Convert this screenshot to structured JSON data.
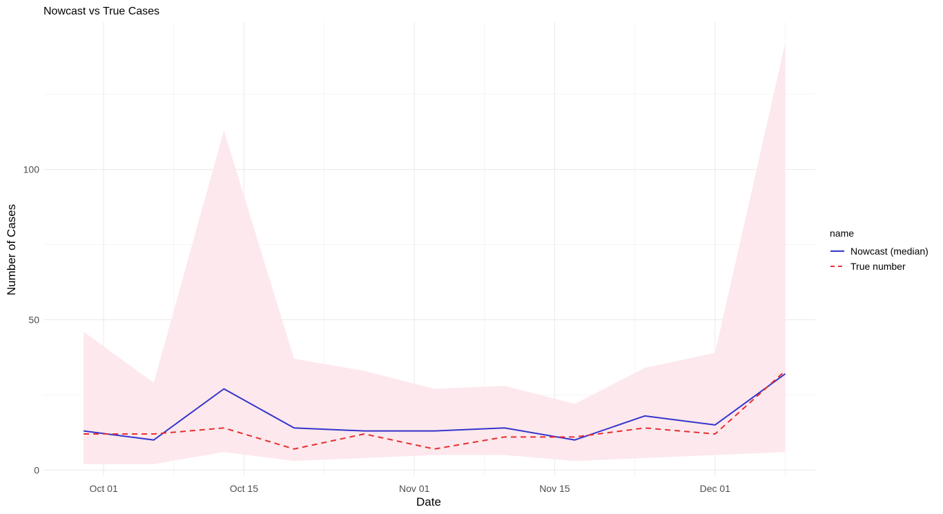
{
  "chart_data": {
    "type": "line",
    "title": "Nowcast vs True Cases",
    "xlabel": "Date",
    "ylabel": "Number of Cases",
    "x": [
      "2023-09-29",
      "2023-10-06",
      "2023-10-13",
      "2023-10-20",
      "2023-10-27",
      "2023-11-03",
      "2023-11-10",
      "2023-11-17",
      "2023-11-24",
      "2023-12-01",
      "2023-12-08"
    ],
    "x_range": [
      "2023-09-25",
      "2023-12-11"
    ],
    "ylim": [
      -2,
      149
    ],
    "x_ticks": [
      {
        "date": "2023-10-01",
        "label": "Oct 01"
      },
      {
        "date": "2023-10-15",
        "label": "Oct 15"
      },
      {
        "date": "2023-11-01",
        "label": "Nov 01"
      },
      {
        "date": "2023-11-15",
        "label": "Nov 15"
      },
      {
        "date": "2023-12-01",
        "label": "Dec 01"
      }
    ],
    "x_minor_ticks": [
      "2023-10-08",
      "2023-10-23",
      "2023-11-08",
      "2023-11-23",
      "2023-12-08"
    ],
    "y_ticks": [
      0,
      50,
      100
    ],
    "y_minor_ticks": [
      25,
      75,
      125
    ],
    "grid": true,
    "legend_title": "name",
    "legend_position": "right",
    "series": [
      {
        "name": "Nowcast (median)",
        "color": "#3333cc",
        "line_style": "solid",
        "values": [
          13,
          10,
          27,
          14,
          13,
          13,
          14,
          10,
          18,
          15,
          32
        ]
      },
      {
        "name": "True number",
        "color": "#e62e2e",
        "line_style": "dashed",
        "values": [
          12,
          12,
          14,
          7,
          12,
          7,
          11,
          11,
          14,
          12,
          33
        ]
      }
    ],
    "band": {
      "color": "#fde8ed",
      "lower": [
        2,
        2,
        6,
        3,
        4,
        5,
        5,
        3,
        4,
        5,
        6
      ],
      "upper": [
        46,
        29,
        113,
        37,
        33,
        27,
        28,
        22,
        34,
        39,
        142
      ]
    }
  }
}
